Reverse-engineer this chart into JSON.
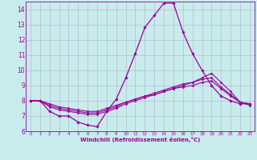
{
  "xlabel": "Windchill (Refroidissement éolien,°C)",
  "bg_color": "#c8ecec",
  "line_color": "#990099",
  "grid_color": "#b0b0cc",
  "xlim": [
    -0.5,
    23.5
  ],
  "ylim": [
    6,
    14.5
  ],
  "yticks": [
    6,
    7,
    8,
    9,
    10,
    11,
    12,
    13,
    14
  ],
  "xticks": [
    0,
    1,
    2,
    3,
    4,
    5,
    6,
    7,
    8,
    9,
    10,
    11,
    12,
    13,
    14,
    15,
    16,
    17,
    18,
    19,
    20,
    21,
    22,
    23
  ],
  "lines": [
    {
      "x": [
        0,
        1,
        2,
        3,
        4,
        5,
        6,
        7,
        8,
        9,
        10,
        11,
        12,
        13,
        14,
        15,
        16,
        17,
        18,
        19,
        20,
        21,
        22,
        23
      ],
      "y": [
        8.0,
        8.0,
        7.3,
        7.0,
        7.0,
        6.6,
        6.4,
        6.3,
        7.3,
        8.1,
        9.5,
        11.1,
        12.8,
        13.6,
        14.4,
        14.4,
        12.5,
        11.1,
        10.0,
        9.0,
        8.3,
        8.0,
        7.8,
        7.8
      ],
      "marker": "D",
      "markersize": 1.8,
      "linewidth": 0.9
    },
    {
      "x": [
        0,
        1,
        2,
        3,
        4,
        5,
        6,
        7,
        8,
        9,
        10,
        11,
        12,
        13,
        14,
        15,
        16,
        17,
        18,
        19,
        20,
        21,
        22,
        23
      ],
      "y": [
        8.0,
        8.0,
        7.6,
        7.4,
        7.3,
        7.2,
        7.1,
        7.1,
        7.3,
        7.5,
        7.8,
        8.0,
        8.2,
        8.4,
        8.6,
        8.8,
        9.0,
        9.2,
        9.5,
        9.8,
        9.2,
        8.6,
        7.9,
        7.7
      ],
      "marker": "D",
      "markersize": 1.5,
      "linewidth": 0.8
    },
    {
      "x": [
        0,
        1,
        2,
        3,
        4,
        5,
        6,
        7,
        8,
        9,
        10,
        11,
        12,
        13,
        14,
        15,
        16,
        17,
        18,
        19,
        20,
        21,
        22,
        23
      ],
      "y": [
        8.0,
        8.0,
        7.7,
        7.5,
        7.4,
        7.3,
        7.2,
        7.2,
        7.4,
        7.6,
        7.9,
        8.1,
        8.3,
        8.5,
        8.7,
        8.9,
        9.1,
        9.2,
        9.4,
        9.5,
        8.9,
        8.4,
        7.9,
        7.8
      ],
      "marker": "D",
      "markersize": 1.5,
      "linewidth": 0.8
    },
    {
      "x": [
        0,
        1,
        2,
        3,
        4,
        5,
        6,
        7,
        8,
        9,
        10,
        11,
        12,
        13,
        14,
        15,
        16,
        17,
        18,
        19,
        20,
        21,
        22,
        23
      ],
      "y": [
        8.0,
        8.0,
        7.8,
        7.6,
        7.5,
        7.4,
        7.3,
        7.3,
        7.5,
        7.7,
        7.9,
        8.1,
        8.3,
        8.4,
        8.6,
        8.8,
        8.9,
        9.0,
        9.2,
        9.3,
        8.8,
        8.3,
        7.9,
        7.8
      ],
      "marker": "D",
      "markersize": 1.5,
      "linewidth": 0.8
    }
  ]
}
